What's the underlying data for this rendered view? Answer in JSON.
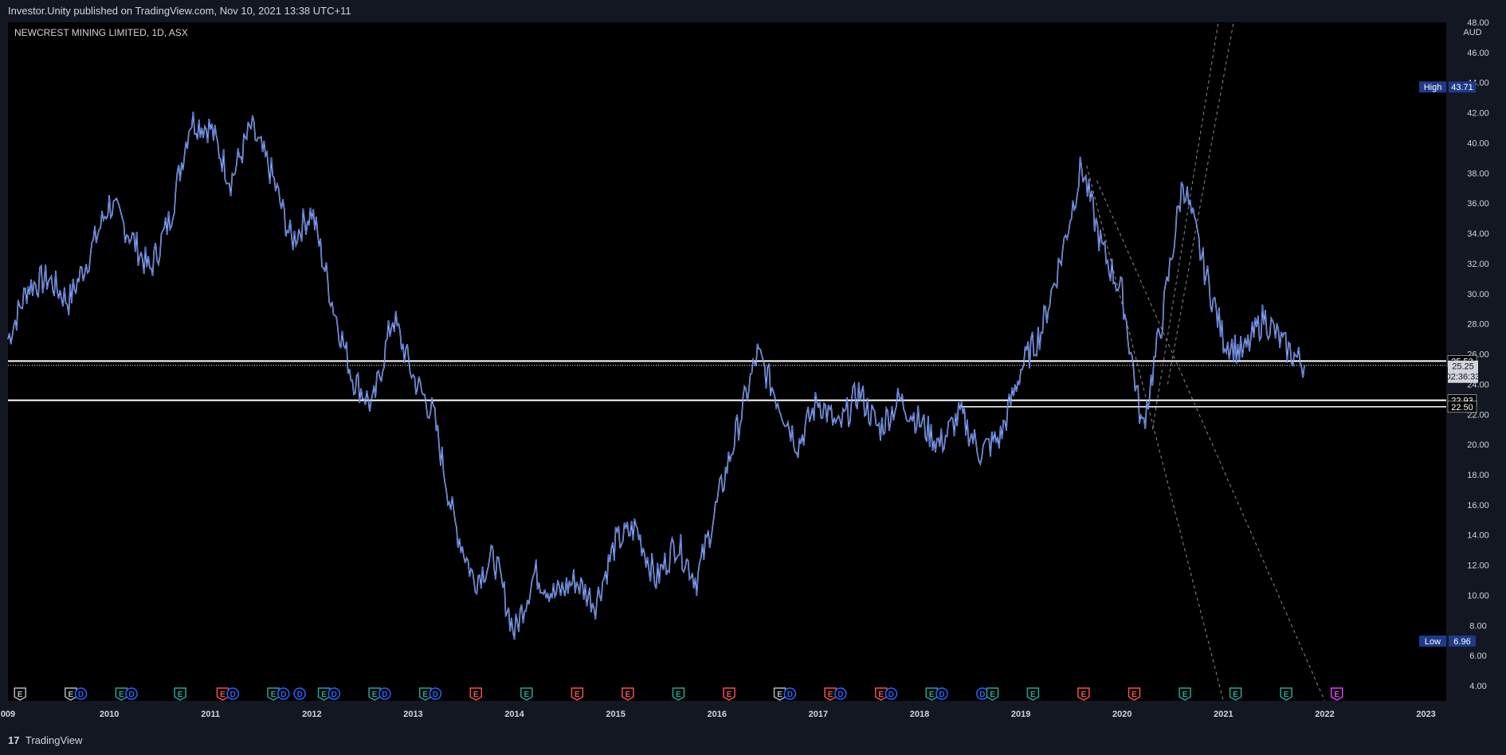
{
  "header": {
    "publish_text": "Investor.Unity published on TradingView.com, Nov 10, 2021 13:38 UTC+11"
  },
  "footer": {
    "logo_mark": "17",
    "logo_text": "TradingView"
  },
  "chart_data": {
    "type": "line",
    "title": "NEWCREST MINING LIMITED, 1D, ASX",
    "currency": "AUD",
    "ylim": [
      3,
      48
    ],
    "y_ticks": [
      "4.00",
      "6.00",
      "8.00",
      "10.00",
      "12.00",
      "14.00",
      "16.00",
      "18.00",
      "20.00",
      "22.00",
      "24.00",
      "26.00",
      "28.00",
      "30.00",
      "32.00",
      "34.00",
      "36.00",
      "38.00",
      "40.00",
      "42.00",
      "44.00",
      "46.00",
      "48.00"
    ],
    "x_ticks": [
      "009",
      "2010",
      "2011",
      "2012",
      "2013",
      "2014",
      "2015",
      "2016",
      "2017",
      "2018",
      "2019",
      "2020",
      "2021",
      "2022",
      "2023"
    ],
    "x": [
      2009.0,
      2009.2,
      2009.4,
      2009.6,
      2009.8,
      2010.0,
      2010.2,
      2010.4,
      2010.6,
      2010.8,
      2011.0,
      2011.2,
      2011.4,
      2011.6,
      2011.8,
      2012.0,
      2012.2,
      2012.4,
      2012.6,
      2012.8,
      2013.0,
      2013.2,
      2013.4,
      2013.6,
      2013.8,
      2014.0,
      2014.2,
      2014.4,
      2014.6,
      2014.8,
      2015.0,
      2015.2,
      2015.4,
      2015.6,
      2015.8,
      2016.0,
      2016.2,
      2016.4,
      2016.6,
      2016.8,
      2017.0,
      2017.2,
      2017.4,
      2017.6,
      2017.8,
      2018.0,
      2018.2,
      2018.4,
      2018.6,
      2018.8,
      2019.0,
      2019.2,
      2019.4,
      2019.6,
      2019.8,
      2020.0,
      2020.2,
      2020.4,
      2020.6,
      2020.8,
      2021.0,
      2021.2,
      2021.4,
      2021.6,
      2021.8
    ],
    "y": [
      27.0,
      30.5,
      31.0,
      29.5,
      32.5,
      36.0,
      34.0,
      31.5,
      35.0,
      41.5,
      41.0,
      37.5,
      41.0,
      38.0,
      33.5,
      35.5,
      29.5,
      24.5,
      22.5,
      28.5,
      24.5,
      22.0,
      15.0,
      11.0,
      12.5,
      7.5,
      11.5,
      10.0,
      11.0,
      9.5,
      13.5,
      14.5,
      11.0,
      13.5,
      11.0,
      16.0,
      21.0,
      26.0,
      23.0,
      20.0,
      23.0,
      21.0,
      23.5,
      21.0,
      23.0,
      21.5,
      20.0,
      22.0,
      19.5,
      20.5,
      25.0,
      27.5,
      32.5,
      38.5,
      33.0,
      30.0,
      21.0,
      28.5,
      37.5,
      32.0,
      27.0,
      26.0,
      28.5,
      26.5,
      25.25
    ],
    "annotations": {
      "high": {
        "label": "High",
        "value": "43.71"
      },
      "low": {
        "label": "Low",
        "value": "6.96"
      },
      "last_price": {
        "value": "25.25",
        "countdown": "02:36:33"
      },
      "levels": [
        "25.53",
        "22.93",
        "22.50"
      ]
    },
    "event_markers": [
      {
        "x": 2009.12,
        "type": "E",
        "color": "#b2b5be"
      },
      {
        "x": 2009.62,
        "type": "E",
        "color": "#b2b5be"
      },
      {
        "x": 2009.72,
        "type": "D",
        "color": "#2962ff"
      },
      {
        "x": 2010.12,
        "type": "E",
        "color": "#26a69a"
      },
      {
        "x": 2010.22,
        "type": "D",
        "color": "#2962ff"
      },
      {
        "x": 2010.7,
        "type": "E",
        "color": "#26a69a"
      },
      {
        "x": 2011.12,
        "type": "E",
        "color": "#ef5350"
      },
      {
        "x": 2011.22,
        "type": "D",
        "color": "#2962ff"
      },
      {
        "x": 2011.62,
        "type": "E",
        "color": "#26a69a"
      },
      {
        "x": 2011.72,
        "type": "D",
        "color": "#2962ff"
      },
      {
        "x": 2011.88,
        "type": "D",
        "color": "#2962ff"
      },
      {
        "x": 2012.12,
        "type": "E",
        "color": "#26a69a"
      },
      {
        "x": 2012.22,
        "type": "D",
        "color": "#2962ff"
      },
      {
        "x": 2012.62,
        "type": "E",
        "color": "#26a69a"
      },
      {
        "x": 2012.72,
        "type": "D",
        "color": "#2962ff"
      },
      {
        "x": 2013.12,
        "type": "E",
        "color": "#26a69a"
      },
      {
        "x": 2013.22,
        "type": "D",
        "color": "#2962ff"
      },
      {
        "x": 2013.62,
        "type": "E",
        "color": "#ef5350"
      },
      {
        "x": 2014.12,
        "type": "E",
        "color": "#26a69a"
      },
      {
        "x": 2014.62,
        "type": "E",
        "color": "#ef5350"
      },
      {
        "x": 2015.12,
        "type": "E",
        "color": "#ef5350"
      },
      {
        "x": 2015.62,
        "type": "E",
        "color": "#26a69a"
      },
      {
        "x": 2016.12,
        "type": "E",
        "color": "#ef5350"
      },
      {
        "x": 2016.62,
        "type": "E",
        "color": "#b2b5be"
      },
      {
        "x": 2016.72,
        "type": "D",
        "color": "#2962ff"
      },
      {
        "x": 2017.12,
        "type": "E",
        "color": "#ef5350"
      },
      {
        "x": 2017.22,
        "type": "D",
        "color": "#2962ff"
      },
      {
        "x": 2017.62,
        "type": "E",
        "color": "#ef5350"
      },
      {
        "x": 2017.72,
        "type": "D",
        "color": "#2962ff"
      },
      {
        "x": 2018.12,
        "type": "E",
        "color": "#26a69a"
      },
      {
        "x": 2018.22,
        "type": "D",
        "color": "#2962ff"
      },
      {
        "x": 2018.62,
        "type": "D",
        "color": "#2962ff"
      },
      {
        "x": 2018.72,
        "type": "E",
        "color": "#26a69a"
      },
      {
        "x": 2019.12,
        "type": "E",
        "color": "#26a69a"
      },
      {
        "x": 2019.62,
        "type": "E",
        "color": "#ef5350"
      },
      {
        "x": 2020.12,
        "type": "E",
        "color": "#ef5350"
      },
      {
        "x": 2020.62,
        "type": "E",
        "color": "#26a69a"
      },
      {
        "x": 2021.12,
        "type": "E",
        "color": "#26a69a"
      },
      {
        "x": 2021.62,
        "type": "E",
        "color": "#26a69a"
      },
      {
        "x": 2022.12,
        "type": "E",
        "color": "#e040fb"
      }
    ],
    "series_color": "#2962ff",
    "grid": false
  }
}
